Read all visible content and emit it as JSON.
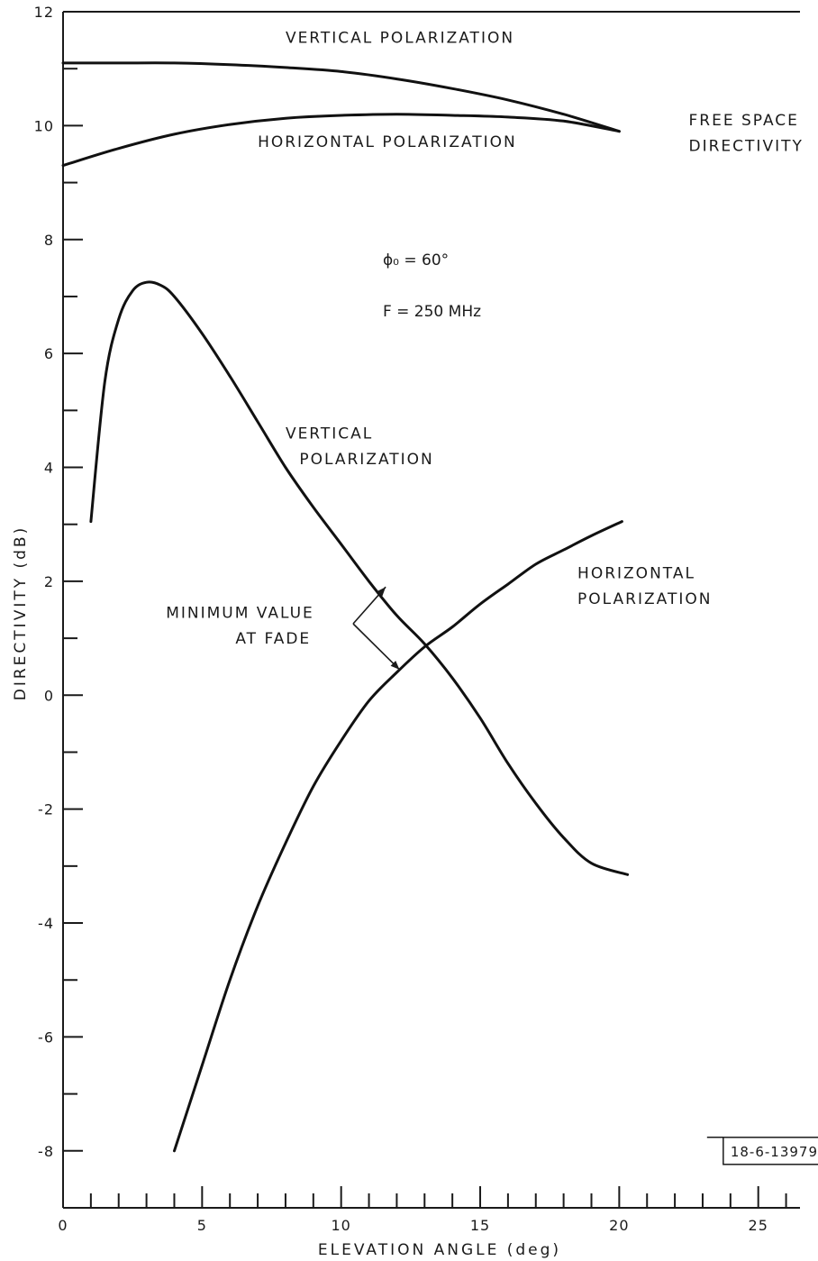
{
  "chart_data": {
    "type": "line",
    "xlabel": "ELEVATION ANGLE (deg)",
    "ylabel": "DIRECTIVITY (dB)",
    "xlim": [
      0,
      26.5
    ],
    "ylim": [
      -9,
      12
    ],
    "x_major_ticks": [
      0,
      5,
      10,
      15,
      20,
      25
    ],
    "y_major_ticks": [
      -8,
      -6,
      -4,
      -2,
      0,
      2,
      4,
      6,
      8,
      10,
      12
    ],
    "x_tick_labels": [
      "0",
      "5",
      "10",
      "15",
      "20",
      "25"
    ],
    "y_tick_labels": [
      "-8",
      "-6",
      "-4",
      "-2",
      "0",
      "2",
      "4",
      "6",
      "8",
      "10",
      "12"
    ],
    "grid": false,
    "series": [
      {
        "name": "VERTICAL POLARIZATION",
        "group": "free-space",
        "x": [
          0,
          2,
          4,
          6,
          8,
          10,
          12,
          14,
          16,
          18,
          20
        ],
        "y": [
          11.1,
          11.1,
          11.1,
          11.07,
          11.02,
          10.95,
          10.82,
          10.65,
          10.45,
          10.2,
          9.9
        ]
      },
      {
        "name": "HORIZONTAL POLARIZATION",
        "group": "free-space",
        "x": [
          0,
          2,
          4,
          6,
          8,
          10,
          12,
          14,
          16,
          18,
          20
        ],
        "y": [
          9.3,
          9.6,
          9.85,
          10.02,
          10.13,
          10.18,
          10.2,
          10.18,
          10.15,
          10.08,
          9.9
        ]
      },
      {
        "name": "VERTICAL POLARIZATION",
        "group": "ground",
        "x": [
          1,
          1.5,
          2,
          2.5,
          3,
          3.5,
          4,
          5,
          6,
          7,
          8,
          9,
          10,
          11,
          12,
          13,
          14,
          15,
          16,
          17,
          18,
          19,
          20.3
        ],
        "y": [
          3.05,
          5.5,
          6.6,
          7.1,
          7.25,
          7.2,
          7.0,
          6.35,
          5.6,
          4.8,
          4.0,
          3.3,
          2.65,
          2.0,
          1.4,
          0.9,
          0.3,
          -0.4,
          -1.2,
          -1.9,
          -2.5,
          -2.95,
          -3.15
        ]
      },
      {
        "name": "HORIZONTAL POLARIZATION",
        "group": "ground",
        "x": [
          4,
          5,
          6,
          7,
          8,
          9,
          10,
          11,
          12,
          13,
          14,
          15,
          16,
          17,
          18,
          19,
          20.1
        ],
        "y": [
          -8.0,
          -6.5,
          -5.0,
          -3.7,
          -2.6,
          -1.6,
          -0.8,
          -0.1,
          0.4,
          0.85,
          1.2,
          1.6,
          1.95,
          2.3,
          2.55,
          2.8,
          3.05
        ]
      }
    ],
    "annotations": [
      {
        "text": "FREE SPACE",
        "x": 22.5,
        "y": 10.1
      },
      {
        "text": "DIRECTIVITY",
        "x": 22.5,
        "y": 9.65
      },
      {
        "text": "VERTICAL",
        "x": 8.0,
        "y": 4.6
      },
      {
        "text": "POLARIZATION",
        "x": 8.5,
        "y": 4.15
      },
      {
        "text": "HORIZONTAL",
        "x": 18.5,
        "y": 2.15
      },
      {
        "text": "POLARIZATION",
        "x": 18.5,
        "y": 1.7
      },
      {
        "text": "MINIMUM VALUE",
        "x": 3.7,
        "y": 1.45
      },
      {
        "text": "AT FADE",
        "x": 6.2,
        "y": 1.0
      },
      {
        "text": "ϕ₀ = 60°",
        "x": 11.5,
        "y": 7.65
      },
      {
        "text": "F = 250 MHz",
        "x": 11.5,
        "y": 6.75
      },
      {
        "text": "18-6-13979",
        "x": 24.0,
        "y": -8.0
      }
    ]
  }
}
